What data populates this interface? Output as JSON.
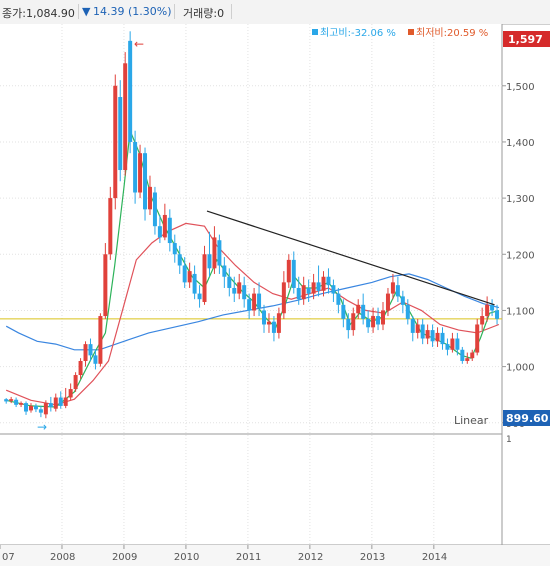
{
  "header": {
    "close_label": "종가:1,084.90",
    "change_arrow": "▼",
    "change_text": "14.39 (1.30%)",
    "volume_label": "거래량:0"
  },
  "legend": {
    "high_ratio": "최고비:-32.06 %",
    "low_ratio": "최저비:20.59 %"
  },
  "price_badges": {
    "high": "1,597",
    "current": "899.60"
  },
  "scale_label": "Linear",
  "colors": {
    "up": "#e0413b",
    "down": "#2aa7e8",
    "ma_short": "#2db35a",
    "ma_mid": "#e0525a",
    "ma_long": "#3a86e0",
    "trend": "#222222",
    "reference": "#d9c21a",
    "badge_high": "#d52b2b",
    "badge_current": "#1d62b5"
  },
  "chart_data": {
    "type": "candlestick",
    "x_labels": [
      "07",
      "2008",
      "2009",
      "2010",
      "2011",
      "2012",
      "2013",
      "2014"
    ],
    "y_ticks": [
      "1,500",
      "1,400",
      "1,300",
      "1,200",
      "1,100",
      "1,000",
      "900"
    ],
    "y_tick_values": [
      1500,
      1400,
      1300,
      1200,
      1100,
      1000,
      900
    ],
    "ylim": [
      880,
      1610
    ],
    "volume_tick": "1",
    "reference_line": 1085,
    "x_start": 2007.0,
    "x_end": 2015.1,
    "candles": [
      [
        2007.1,
        942,
        938,
        944,
        934
      ],
      [
        2007.18,
        939,
        942,
        946,
        935
      ],
      [
        2007.26,
        941,
        932,
        945,
        928
      ],
      [
        2007.34,
        932,
        935,
        938,
        928
      ],
      [
        2007.42,
        935,
        920,
        938,
        914
      ],
      [
        2007.5,
        922,
        930,
        935,
        918
      ],
      [
        2007.58,
        930,
        924,
        934,
        919
      ],
      [
        2007.66,
        924,
        918,
        930,
        910
      ],
      [
        2007.74,
        915,
        935,
        940,
        908
      ],
      [
        2007.82,
        935,
        928,
        946,
        920
      ],
      [
        2007.9,
        925,
        945,
        952,
        920
      ],
      [
        2007.98,
        945,
        930,
        956,
        925
      ],
      [
        2008.06,
        930,
        945,
        962,
        926
      ],
      [
        2008.14,
        945,
        960,
        970,
        940
      ],
      [
        2008.22,
        960,
        985,
        990,
        955
      ],
      [
        2008.3,
        985,
        1010,
        1015,
        978
      ],
      [
        2008.38,
        1010,
        1040,
        1045,
        1000
      ],
      [
        2008.46,
        1040,
        1020,
        1050,
        1010
      ],
      [
        2008.54,
        1020,
        1005,
        1030,
        995
      ],
      [
        2008.62,
        1005,
        1090,
        1095,
        1000
      ],
      [
        2008.7,
        1090,
        1200,
        1220,
        1085
      ],
      [
        2008.78,
        1200,
        1300,
        1320,
        1190
      ],
      [
        2008.86,
        1300,
        1500,
        1520,
        1280
      ],
      [
        2008.94,
        1480,
        1350,
        1510,
        1330
      ],
      [
        2009.02,
        1350,
        1540,
        1560,
        1340
      ],
      [
        2009.1,
        1580,
        1400,
        1597,
        1380
      ],
      [
        2009.18,
        1400,
        1310,
        1420,
        1290
      ],
      [
        2009.26,
        1310,
        1380,
        1395,
        1300
      ],
      [
        2009.34,
        1380,
        1280,
        1390,
        1260
      ],
      [
        2009.42,
        1280,
        1320,
        1340,
        1270
      ],
      [
        2009.5,
        1310,
        1250,
        1320,
        1235
      ],
      [
        2009.58,
        1250,
        1230,
        1270,
        1220
      ],
      [
        2009.66,
        1230,
        1270,
        1290,
        1225
      ],
      [
        2009.74,
        1265,
        1220,
        1280,
        1205
      ],
      [
        2009.82,
        1220,
        1200,
        1235,
        1185
      ],
      [
        2009.9,
        1200,
        1180,
        1215,
        1165
      ],
      [
        2009.98,
        1180,
        1150,
        1195,
        1140
      ],
      [
        2010.06,
        1150,
        1170,
        1185,
        1140
      ],
      [
        2010.14,
        1165,
        1130,
        1180,
        1120
      ],
      [
        2010.22,
        1130,
        1120,
        1145,
        1105
      ],
      [
        2010.3,
        1115,
        1200,
        1215,
        1110
      ],
      [
        2010.38,
        1200,
        1175,
        1240,
        1160
      ],
      [
        2010.46,
        1175,
        1230,
        1250,
        1165
      ],
      [
        2010.54,
        1225,
        1180,
        1235,
        1165
      ],
      [
        2010.62,
        1180,
        1160,
        1195,
        1140
      ],
      [
        2010.7,
        1160,
        1140,
        1175,
        1125
      ],
      [
        2010.78,
        1140,
        1130,
        1160,
        1115
      ],
      [
        2010.86,
        1130,
        1150,
        1165,
        1120
      ],
      [
        2010.94,
        1145,
        1120,
        1160,
        1105
      ],
      [
        2011.02,
        1120,
        1100,
        1130,
        1085
      ],
      [
        2011.1,
        1100,
        1130,
        1140,
        1090
      ],
      [
        2011.18,
        1130,
        1105,
        1150,
        1090
      ],
      [
        2011.26,
        1100,
        1075,
        1110,
        1060
      ],
      [
        2011.34,
        1075,
        1080,
        1095,
        1060
      ],
      [
        2011.42,
        1080,
        1060,
        1090,
        1045
      ],
      [
        2011.5,
        1060,
        1095,
        1105,
        1050
      ],
      [
        2011.58,
        1095,
        1150,
        1170,
        1085
      ],
      [
        2011.66,
        1150,
        1190,
        1200,
        1140
      ],
      [
        2011.74,
        1190,
        1140,
        1205,
        1130
      ],
      [
        2011.82,
        1140,
        1120,
        1160,
        1110
      ],
      [
        2011.9,
        1120,
        1145,
        1160,
        1110
      ],
      [
        2011.98,
        1140,
        1130,
        1155,
        1115
      ],
      [
        2012.06,
        1130,
        1150,
        1165,
        1120
      ],
      [
        2012.14,
        1150,
        1135,
        1180,
        1125
      ],
      [
        2012.22,
        1135,
        1160,
        1170,
        1125
      ],
      [
        2012.3,
        1160,
        1145,
        1175,
        1130
      ],
      [
        2012.38,
        1145,
        1130,
        1155,
        1115
      ],
      [
        2012.46,
        1130,
        1110,
        1140,
        1095
      ],
      [
        2012.54,
        1110,
        1085,
        1120,
        1070
      ],
      [
        2012.62,
        1085,
        1065,
        1095,
        1050
      ],
      [
        2012.7,
        1065,
        1095,
        1105,
        1055
      ],
      [
        2012.78,
        1095,
        1110,
        1120,
        1085
      ],
      [
        2012.86,
        1110,
        1085,
        1130,
        1075
      ],
      [
        2012.94,
        1085,
        1070,
        1100,
        1060
      ],
      [
        2013.02,
        1070,
        1090,
        1105,
        1060
      ],
      [
        2013.1,
        1090,
        1075,
        1105,
        1065
      ],
      [
        2013.18,
        1075,
        1100,
        1115,
        1065
      ],
      [
        2013.26,
        1100,
        1130,
        1140,
        1090
      ],
      [
        2013.34,
        1130,
        1150,
        1165,
        1120
      ],
      [
        2013.42,
        1145,
        1125,
        1160,
        1115
      ],
      [
        2013.5,
        1125,
        1110,
        1135,
        1095
      ],
      [
        2013.58,
        1110,
        1085,
        1120,
        1075
      ],
      [
        2013.66,
        1085,
        1060,
        1090,
        1045
      ],
      [
        2013.74,
        1060,
        1075,
        1085,
        1050
      ],
      [
        2013.82,
        1075,
        1050,
        1085,
        1040
      ],
      [
        2013.9,
        1050,
        1065,
        1075,
        1040
      ],
      [
        2013.98,
        1065,
        1045,
        1075,
        1035
      ],
      [
        2014.06,
        1045,
        1060,
        1070,
        1035
      ],
      [
        2014.14,
        1060,
        1040,
        1070,
        1030
      ],
      [
        2014.22,
        1040,
        1030,
        1050,
        1020
      ],
      [
        2014.3,
        1030,
        1050,
        1060,
        1025
      ],
      [
        2014.38,
        1050,
        1030,
        1060,
        1020
      ],
      [
        2014.46,
        1030,
        1010,
        1035,
        1005
      ],
      [
        2014.54,
        1010,
        1015,
        1025,
        1005
      ],
      [
        2014.62,
        1015,
        1025,
        1030,
        1010
      ],
      [
        2014.7,
        1025,
        1075,
        1085,
        1020
      ],
      [
        2014.78,
        1075,
        1090,
        1105,
        1065
      ],
      [
        2014.86,
        1090,
        1110,
        1125,
        1080
      ],
      [
        2014.94,
        1110,
        1100,
        1120,
        1090
      ],
      [
        2015.02,
        1100,
        1085,
        1110,
        1075
      ]
    ],
    "ma_short": [
      [
        2007.1,
        940
      ],
      [
        2007.5,
        930
      ],
      [
        2007.9,
        928
      ],
      [
        2008.2,
        955
      ],
      [
        2008.5,
        1020
      ],
      [
        2008.7,
        1060
      ],
      [
        2008.85,
        1180
      ],
      [
        2009.0,
        1320
      ],
      [
        2009.1,
        1420
      ],
      [
        2009.25,
        1380
      ],
      [
        2009.45,
        1300
      ],
      [
        2009.65,
        1250
      ],
      [
        2009.9,
        1200
      ],
      [
        2010.1,
        1160
      ],
      [
        2010.3,
        1140
      ],
      [
        2010.5,
        1190
      ],
      [
        2010.7,
        1160
      ],
      [
        2010.9,
        1135
      ],
      [
        2011.1,
        1115
      ],
      [
        2011.3,
        1085
      ],
      [
        2011.45,
        1070
      ],
      [
        2011.6,
        1110
      ],
      [
        2011.75,
        1160
      ],
      [
        2011.9,
        1140
      ],
      [
        2012.1,
        1140
      ],
      [
        2012.3,
        1150
      ],
      [
        2012.5,
        1120
      ],
      [
        2012.65,
        1075
      ],
      [
        2012.8,
        1095
      ],
      [
        2013.0,
        1080
      ],
      [
        2013.2,
        1090
      ],
      [
        2013.4,
        1135
      ],
      [
        2013.6,
        1100
      ],
      [
        2013.8,
        1060
      ],
      [
        2014.0,
        1050
      ],
      [
        2014.2,
        1040
      ],
      [
        2014.45,
        1020
      ],
      [
        2014.6,
        1015
      ],
      [
        2014.75,
        1050
      ],
      [
        2014.9,
        1095
      ],
      [
        2015.05,
        1100
      ]
    ],
    "ma_mid": [
      [
        2007.1,
        958
      ],
      [
        2007.5,
        940
      ],
      [
        2007.9,
        932
      ],
      [
        2008.2,
        942
      ],
      [
        2008.5,
        975
      ],
      [
        2008.75,
        1010
      ],
      [
        2009.0,
        1110
      ],
      [
        2009.2,
        1190
      ],
      [
        2009.45,
        1220
      ],
      [
        2009.7,
        1240
      ],
      [
        2010.0,
        1255
      ],
      [
        2010.3,
        1250
      ],
      [
        2010.5,
        1215
      ],
      [
        2010.8,
        1180
      ],
      [
        2011.1,
        1150
      ],
      [
        2011.4,
        1130
      ],
      [
        2011.7,
        1120
      ],
      [
        2012.0,
        1130
      ],
      [
        2012.3,
        1140
      ],
      [
        2012.6,
        1118
      ],
      [
        2012.9,
        1100
      ],
      [
        2013.2,
        1095
      ],
      [
        2013.5,
        1115
      ],
      [
        2013.8,
        1100
      ],
      [
        2014.1,
        1075
      ],
      [
        2014.4,
        1065
      ],
      [
        2014.7,
        1060
      ],
      [
        2015.05,
        1075
      ]
    ],
    "ma_long": [
      [
        2007.1,
        1072
      ],
      [
        2007.3,
        1060
      ],
      [
        2007.6,
        1045
      ],
      [
        2007.9,
        1040
      ],
      [
        2008.2,
        1030
      ],
      [
        2008.6,
        1030
      ],
      [
        2009.0,
        1045
      ],
      [
        2009.4,
        1060
      ],
      [
        2009.8,
        1070
      ],
      [
        2010.2,
        1080
      ],
      [
        2010.6,
        1092
      ],
      [
        2011.0,
        1100
      ],
      [
        2011.4,
        1108
      ],
      [
        2011.8,
        1118
      ],
      [
        2012.2,
        1130
      ],
      [
        2012.6,
        1140
      ],
      [
        2013.0,
        1150
      ],
      [
        2013.3,
        1160
      ],
      [
        2013.6,
        1165
      ],
      [
        2013.9,
        1155
      ],
      [
        2014.2,
        1140
      ],
      [
        2014.5,
        1125
      ],
      [
        2014.8,
        1112
      ],
      [
        2015.05,
        1105
      ]
    ],
    "trendline": [
      [
        2010.34,
        1277
      ],
      [
        2014.98,
        1110
      ]
    ]
  }
}
